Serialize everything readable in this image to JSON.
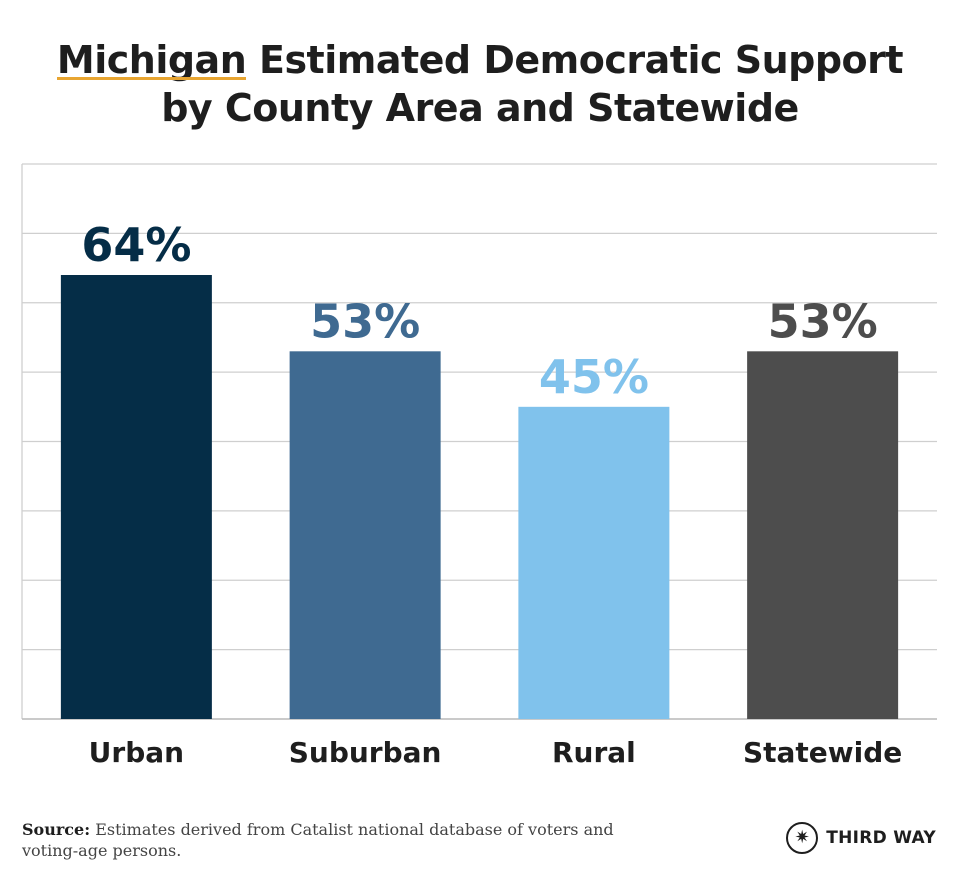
{
  "title": {
    "highlight": "Michigan",
    "line1_rest": "Estimated Democratic Support",
    "line2": "by County Area and Statewide"
  },
  "chart_data": {
    "type": "bar",
    "categories": [
      "Urban",
      "Suburban",
      "Rural",
      "Statewide"
    ],
    "values": [
      64,
      53,
      45,
      53
    ],
    "data_labels": [
      "64%",
      "53%",
      "45%",
      "53%"
    ],
    "colors": [
      "#052d47",
      "#3f6a91",
      "#80c2ec",
      "#4d4d4d"
    ],
    "ylim": [
      0,
      80
    ],
    "grid": true,
    "xlabel": "",
    "ylabel": ""
  },
  "source": {
    "label": "Source:",
    "text": "Estimates derived from Catalist national database of voters and voting-age persons."
  },
  "brand": {
    "logo_icon": "compass-star-icon",
    "name": "THIRD WAY"
  }
}
